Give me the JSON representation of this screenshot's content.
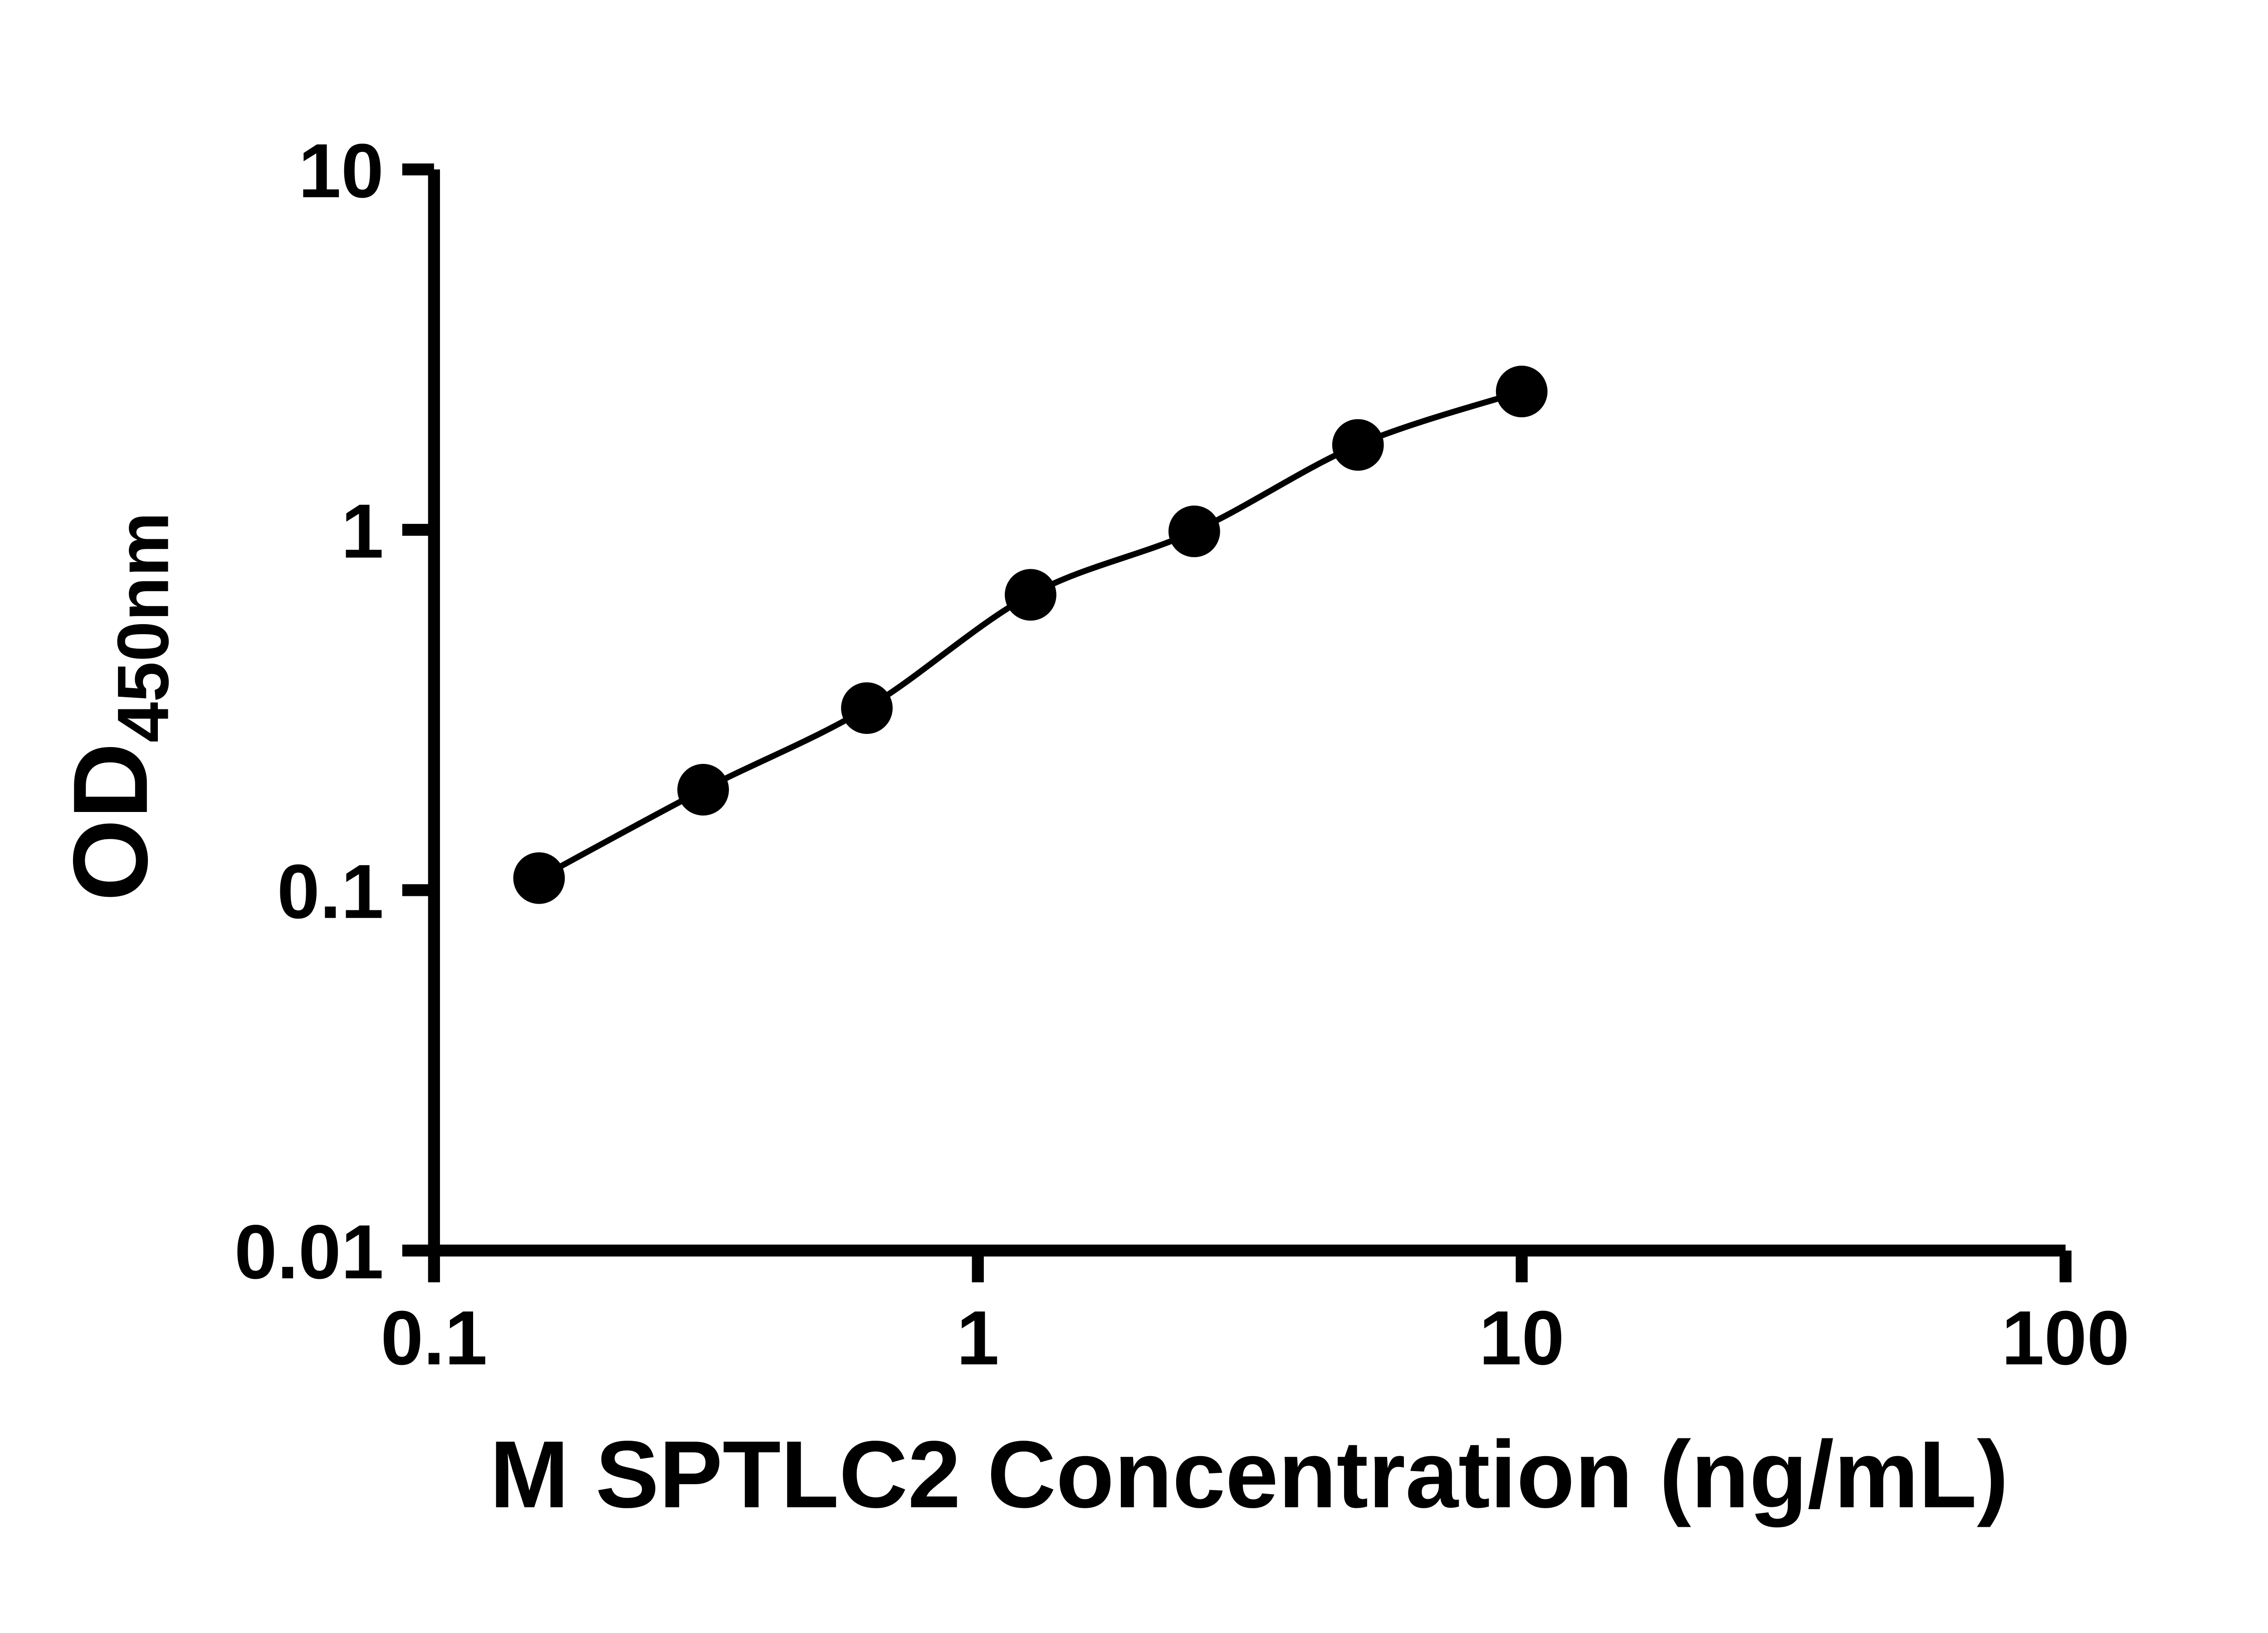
{
  "chart_data": {
    "type": "line",
    "description": "ELISA standard curve, scatter points with smooth fitted line, log-log axes",
    "xlabel": "M SPTLC2 Concentration (ng/mL)",
    "ylabel_main": "OD",
    "ylabel_sub": "450nm",
    "xscale": "log",
    "yscale": "log",
    "xlim": [
      0.1,
      100
    ],
    "ylim": [
      0.01,
      10
    ],
    "x_ticks": [
      {
        "value": 0.1,
        "label": "0.1"
      },
      {
        "value": 1,
        "label": "1"
      },
      {
        "value": 10,
        "label": "10"
      },
      {
        "value": 100,
        "label": "100"
      }
    ],
    "y_ticks": [
      {
        "value": 0.01,
        "label": "0.01"
      },
      {
        "value": 0.1,
        "label": "0.1"
      },
      {
        "value": 1,
        "label": "1"
      },
      {
        "value": 10,
        "label": "10"
      }
    ],
    "series": [
      {
        "marker": "circle",
        "color": "#000000",
        "points": [
          {
            "x": 0.156,
            "y": 0.108
          },
          {
            "x": 0.3125,
            "y": 0.19
          },
          {
            "x": 0.625,
            "y": 0.32
          },
          {
            "x": 1.25,
            "y": 0.66
          },
          {
            "x": 2.5,
            "y": 0.99
          },
          {
            "x": 5,
            "y": 1.72
          },
          {
            "x": 10,
            "y": 2.42
          }
        ]
      }
    ],
    "grid": false,
    "legend": false
  },
  "colors": {
    "axis": "#000000",
    "marker": "#000000",
    "line": "#000000",
    "background": "#ffffff"
  }
}
